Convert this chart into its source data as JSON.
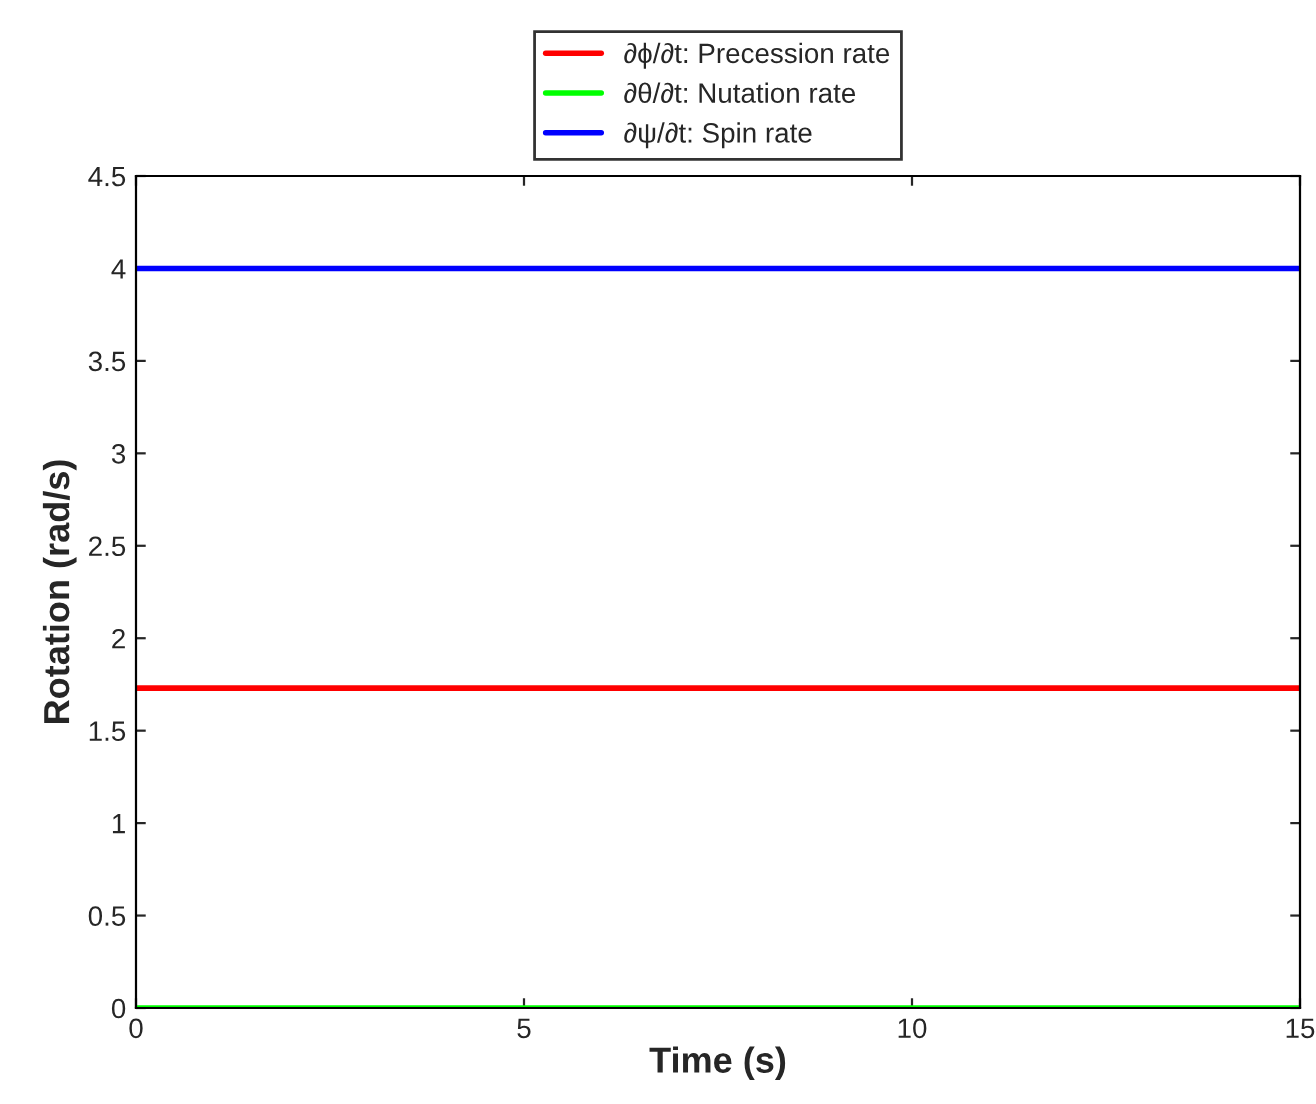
{
  "chart_data": {
    "type": "line",
    "xlabel": "Time (s)",
    "ylabel": "Rotation (rad/s)",
    "x": [
      0,
      15
    ],
    "series": [
      {
        "name": "∂ϕ/∂t: Precession rate",
        "color": "#ff0000",
        "values": [
          1.73,
          1.73
        ]
      },
      {
        "name": "∂θ/∂t: Nutation rate",
        "color": "#00ff00",
        "values": [
          0,
          0
        ]
      },
      {
        "name": "∂ψ/∂t: Spin rate",
        "color": "#0000ff",
        "values": [
          4.0,
          4.0
        ]
      }
    ],
    "xlim": [
      0,
      15
    ],
    "xticks": [
      0,
      5,
      10,
      15
    ],
    "ylim": [
      0,
      4.5
    ],
    "yticks": [
      0,
      0.5,
      1,
      1.5,
      2,
      2.5,
      3,
      3.5,
      4,
      4.5
    ],
    "legend": "top",
    "grid": false,
    "line_style": "solid",
    "marker": "none"
  }
}
